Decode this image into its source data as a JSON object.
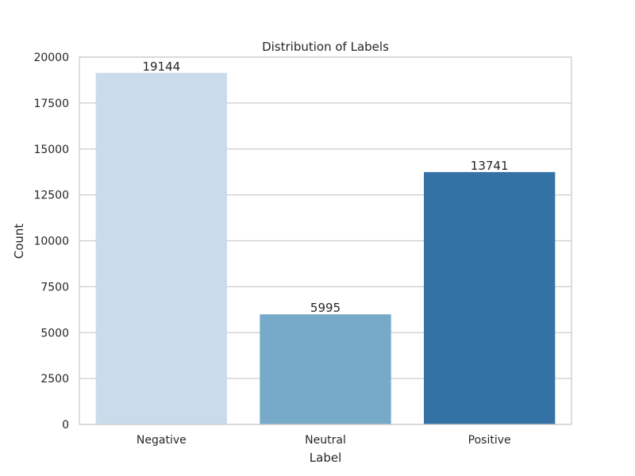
{
  "chart_data": {
    "type": "bar",
    "title": "Distribution of Labels",
    "xlabel": "Label",
    "ylabel": "Count",
    "categories": [
      "Negative",
      "Neutral",
      "Positive"
    ],
    "values": [
      19144,
      5995,
      13741
    ],
    "value_labels": [
      "19144",
      "5995",
      "13741"
    ],
    "colors": [
      "#cadbeb",
      "#77a9c9",
      "#3472a6"
    ],
    "ylim": [
      0,
      20000
    ],
    "yticks": [
      0,
      2500,
      5000,
      7500,
      10000,
      12500,
      15000,
      17500,
      20000
    ],
    "ytick_labels": [
      "0",
      "2500",
      "5000",
      "7500",
      "10000",
      "12500",
      "15000",
      "17500",
      "20000"
    ],
    "grid": true,
    "grid_axis": "y",
    "grid_color": "#cccccc",
    "spine_color": "#cccccc"
  }
}
